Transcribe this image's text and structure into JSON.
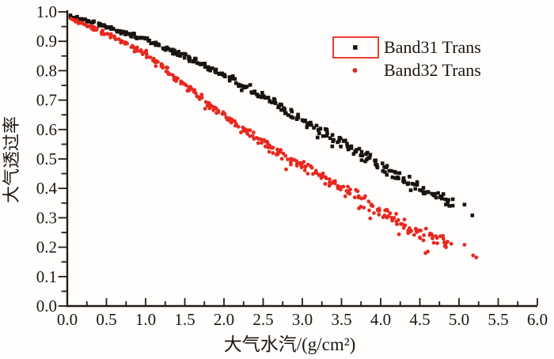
{
  "figure": {
    "background": "#fffefd",
    "axis_color": "#231c16",
    "text_color": "#1c1713"
  },
  "chart_data": {
    "type": "scatter",
    "title": "",
    "xlabel": "大气水汽/(g/cm²)",
    "ylabel": "大气透过率",
    "xlim": [
      0.0,
      6.0
    ],
    "ylim": [
      0.0,
      1.0
    ],
    "x_major_step": 0.5,
    "x_minor_step": 0.25,
    "y_major_step": 0.1,
    "y_minor_step": 0.05,
    "grid": false,
    "x_tick_labels": [
      "0.0",
      "0.5",
      "1.0",
      "1.5",
      "2.0",
      "2.5",
      "3.0",
      "3.5",
      "4.0",
      "4.5",
      "5.0",
      "5.5",
      "6.0"
    ],
    "y_tick_labels": [
      "0.0",
      "0.1",
      "0.2",
      "0.3",
      "0.4",
      "0.5",
      "0.6",
      "0.7",
      "0.8",
      "0.9",
      "1.0"
    ],
    "legend": {
      "position": "top-right",
      "box_color": "#e8281e",
      "entries": [
        {
          "label": "Band31 Trans",
          "marker": "square",
          "color": "#1a1310",
          "boxed": true
        },
        {
          "label": "Band32 Trans",
          "marker": "circle",
          "color": "#e8281e",
          "boxed": false
        }
      ]
    },
    "series": [
      {
        "name": "Band31 Trans",
        "marker": "square",
        "color": "#1a1310",
        "marker_size": 4.6,
        "trend": [
          [
            0,
            0.988
          ],
          [
            0.5,
            0.95
          ],
          [
            1,
            0.905
          ],
          [
            1.5,
            0.85
          ],
          [
            2,
            0.788
          ],
          [
            2.5,
            0.715
          ],
          [
            3,
            0.632
          ],
          [
            3.5,
            0.555
          ],
          [
            4,
            0.475
          ],
          [
            4.5,
            0.398
          ],
          [
            4.92,
            0.352
          ]
        ],
        "x_range": [
          0.04,
          4.92
        ],
        "count": 310,
        "noise_base": 0.005,
        "noise_max": 0.024,
        "outlier_rate": 0.04,
        "outlier_mag": 1.4,
        "seed": 1234,
        "extra_points": [
          [
            5.07,
            0.345
          ],
          [
            5.17,
            0.308
          ]
        ]
      },
      {
        "name": "Band32 Trans",
        "marker": "circle",
        "color": "#e8281e",
        "marker_size": 4.8,
        "trend": [
          [
            0,
            0.982
          ],
          [
            0.5,
            0.925
          ],
          [
            1,
            0.86
          ],
          [
            1.5,
            0.75
          ],
          [
            2,
            0.648
          ],
          [
            2.5,
            0.552
          ],
          [
            3,
            0.478
          ],
          [
            3.5,
            0.402
          ],
          [
            4,
            0.32
          ],
          [
            4.5,
            0.245
          ],
          [
            4.92,
            0.205
          ]
        ],
        "x_range": [
          0.04,
          4.9
        ],
        "count": 320,
        "noise_base": 0.006,
        "noise_max": 0.028,
        "outlier_rate": 0.06,
        "outlier_mag": 1.8,
        "seed": 5678,
        "extra_points": [
          [
            5.07,
            0.208
          ],
          [
            5.18,
            0.172
          ],
          [
            5.22,
            0.165
          ]
        ]
      }
    ]
  }
}
